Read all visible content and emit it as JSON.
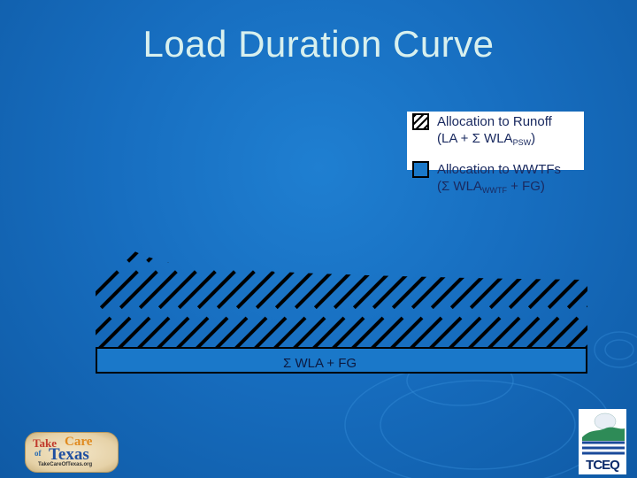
{
  "slide": {
    "title": "Load Duration Curve"
  },
  "legend": {
    "runoff": {
      "line1": "Allocation to Runoff",
      "line2_prefix": "(LA + Σ WLA",
      "line2_sub": "PSW",
      "line2_suffix": ")"
    },
    "wwtf": {
      "line1": "Allocation to WWTFs",
      "line2_prefix": "(Σ WLA",
      "line2_sub": "WWTF",
      "line2_suffix": " + FG)"
    }
  },
  "diagram": {
    "wla_label": "Σ WLA + FG"
  },
  "logos": {
    "left_word1": "Take",
    "left_word2": "Care",
    "left_word3": "of",
    "left_word4": "Texas",
    "left_url": "TakeCareOfTexas.org",
    "right_text": "TCEQ"
  },
  "colors": {
    "background": "#176ec0",
    "title": "#d8f0ee",
    "hatch": "#000000",
    "wla_fill": "#1a78c9"
  }
}
